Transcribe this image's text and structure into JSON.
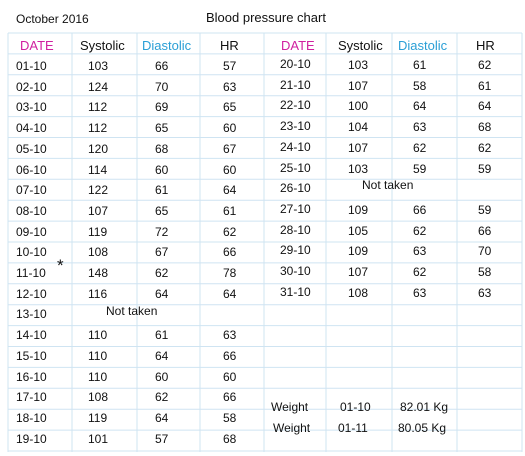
{
  "header": {
    "month": "October 2016",
    "title": "Blood pressure chart"
  },
  "columns": {
    "date": "DATE",
    "systolic": "Systolic",
    "diastolic": "Diastolic",
    "hr": "HR"
  },
  "colors": {
    "date_header": "#d020a0",
    "diastolic_header": "#2a9fd6",
    "grid": "#cfe4f2"
  },
  "left_rows": [
    {
      "date": "01-10",
      "sys": "103",
      "dia": "66",
      "hr": "57"
    },
    {
      "date": "02-10",
      "sys": "124",
      "dia": "70",
      "hr": "63"
    },
    {
      "date": "03-10",
      "sys": "112",
      "dia": "69",
      "hr": "65"
    },
    {
      "date": "04-10",
      "sys": "112",
      "dia": "65",
      "hr": "60"
    },
    {
      "date": "05-10",
      "sys": "120",
      "dia": "68",
      "hr": "67"
    },
    {
      "date": "06-10",
      "sys": "114",
      "dia": "60",
      "hr": "60"
    },
    {
      "date": "07-10",
      "sys": "122",
      "dia": "61",
      "hr": "64"
    },
    {
      "date": "08-10",
      "sys": "107",
      "dia": "65",
      "hr": "61"
    },
    {
      "date": "09-10",
      "sys": "119",
      "dia": "72",
      "hr": "62"
    },
    {
      "date": "10-10",
      "sys": "108",
      "dia": "67",
      "hr": "66"
    },
    {
      "date": "11-10",
      "sys": "148",
      "dia": "62",
      "hr": "78",
      "mark": "*"
    },
    {
      "date": "12-10",
      "sys": "116",
      "dia": "64",
      "hr": "64"
    },
    {
      "date": "13-10",
      "note": "Not taken"
    },
    {
      "date": "14-10",
      "sys": "110",
      "dia": "61",
      "hr": "63"
    },
    {
      "date": "15-10",
      "sys": "110",
      "dia": "64",
      "hr": "66"
    },
    {
      "date": "16-10",
      "sys": "110",
      "dia": "60",
      "hr": "60"
    },
    {
      "date": "17-10",
      "sys": "108",
      "dia": "62",
      "hr": "66"
    },
    {
      "date": "18-10",
      "sys": "119",
      "dia": "64",
      "hr": "58"
    },
    {
      "date": "19-10",
      "sys": "101",
      "dia": "57",
      "hr": "68"
    }
  ],
  "right_rows": [
    {
      "date": "20-10",
      "sys": "103",
      "dia": "61",
      "hr": "62"
    },
    {
      "date": "21-10",
      "sys": "107",
      "dia": "58",
      "hr": "61"
    },
    {
      "date": "22-10",
      "sys": "100",
      "dia": "64",
      "hr": "64"
    },
    {
      "date": "23-10",
      "sys": "104",
      "dia": "63",
      "hr": "68"
    },
    {
      "date": "24-10",
      "sys": "107",
      "dia": "62",
      "hr": "62"
    },
    {
      "date": "25-10",
      "sys": "103",
      "dia": "59",
      "hr": "59"
    },
    {
      "date": "26-10",
      "note": "Not taken"
    },
    {
      "date": "27-10",
      "sys": "109",
      "dia": "66",
      "hr": "59"
    },
    {
      "date": "28-10",
      "sys": "105",
      "dia": "62",
      "hr": "66"
    },
    {
      "date": "29-10",
      "sys": "109",
      "dia": "63",
      "hr": "70"
    },
    {
      "date": "30-10",
      "sys": "107",
      "dia": "62",
      "hr": "58"
    },
    {
      "date": "31-10",
      "sys": "108",
      "dia": "63",
      "hr": "63"
    }
  ],
  "weights": [
    {
      "label": "Weight",
      "date": "01-10",
      "value": "82.01 Kg"
    },
    {
      "label": "Weight",
      "date": "01-11",
      "value": "80.05 Kg"
    }
  ]
}
